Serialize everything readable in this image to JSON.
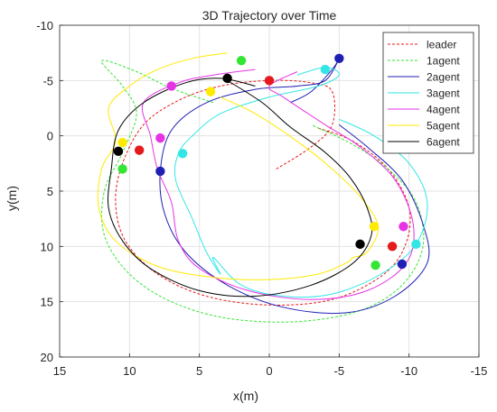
{
  "chart_data": {
    "type": "line",
    "title": "3D Trajectory over Time",
    "xlabel": "x(m)",
    "ylabel": "y(m)",
    "xlim": [
      15,
      -15
    ],
    "ylim": [
      -10,
      20
    ],
    "x_reversed": true,
    "y_reversed": true,
    "xticks": [
      15,
      10,
      5,
      0,
      -5,
      -10,
      -15
    ],
    "yticks": [
      -10,
      -5,
      0,
      5,
      10,
      15,
      20
    ],
    "xtick_labels": [
      "15",
      "10",
      "5",
      "0",
      "-5",
      "-10",
      "-15"
    ],
    "ytick_labels": [
      "-10",
      "-5",
      "0",
      "5",
      "10",
      "15",
      "20"
    ],
    "grid": true,
    "legend_position": "top-right",
    "series": [
      {
        "name": "leader",
        "color": "#e41a1c",
        "style": "dashed",
        "points": [
          [
            -0.5,
            3.0
          ],
          [
            -3.0,
            1.0
          ],
          [
            -4.5,
            -1.0
          ],
          [
            -4.5,
            -4.0
          ],
          [
            -3.0,
            -4.8
          ],
          [
            0,
            -5.0
          ],
          [
            3.5,
            -4.5
          ],
          [
            6.5,
            -3.2
          ],
          [
            9.0,
            -1.0
          ],
          [
            10.5,
            2.5
          ],
          [
            11.0,
            6.0
          ],
          [
            10.3,
            9.5
          ],
          [
            8.0,
            12.5
          ],
          [
            4.5,
            14.5
          ],
          [
            0,
            15.3
          ],
          [
            -4.5,
            14.8
          ],
          [
            -8.0,
            12.7
          ],
          [
            -9.7,
            10.0
          ],
          [
            -10.0,
            6.5
          ],
          [
            -8.5,
            3.0
          ],
          [
            -6.0,
            0.5
          ],
          [
            -3.5,
            -0.7
          ]
        ],
        "markers": [
          [
            0,
            -5.0
          ],
          [
            9.3,
            1.3
          ],
          [
            -8.8,
            10.0
          ]
        ]
      },
      {
        "name": "1agent",
        "color": "#33e633",
        "style": "dashed",
        "points": [
          [
            4.0,
            -3.0
          ],
          [
            7.0,
            -4.3
          ],
          [
            9.5,
            -5.8
          ],
          [
            12.0,
            -6.8
          ],
          [
            10.5,
            -4.5
          ],
          [
            9.5,
            -2.0
          ],
          [
            10.5,
            1.5
          ],
          [
            11.8,
            5.0
          ],
          [
            11.8,
            9.0
          ],
          [
            10.0,
            12.5
          ],
          [
            7.0,
            15.0
          ],
          [
            3.0,
            16.5
          ],
          [
            -2.0,
            16.8
          ],
          [
            -6.5,
            15.8
          ],
          [
            -9.5,
            13.5
          ],
          [
            -11.0,
            10.0
          ],
          [
            -10.5,
            6.0
          ],
          [
            -8.5,
            3.0
          ],
          [
            -6.0,
            0.8
          ],
          [
            -3.0,
            -1.0
          ]
        ],
        "markers": [
          [
            2.0,
            -6.8
          ],
          [
            10.5,
            3.0
          ],
          [
            -7.6,
            11.7
          ]
        ]
      },
      {
        "name": "2agent",
        "color": "#1f1fb4",
        "style": "solid",
        "points": [
          [
            -1.5,
            -3.0
          ],
          [
            -3.0,
            -4.0
          ],
          [
            -4.5,
            -6.0
          ],
          [
            -5.0,
            -7.0
          ],
          [
            -4.0,
            -5.0
          ],
          [
            -2.0,
            -4.5
          ],
          [
            1.0,
            -4.2
          ],
          [
            4.5,
            -3.0
          ],
          [
            7.0,
            -0.5
          ],
          [
            7.8,
            3.2
          ],
          [
            7.5,
            7.0
          ],
          [
            6.0,
            10.5
          ],
          [
            3.0,
            13.5
          ],
          [
            -1.0,
            15.5
          ],
          [
            -5.5,
            16.0
          ],
          [
            -9.0,
            14.5
          ],
          [
            -11.3,
            11.5
          ],
          [
            -11.0,
            8.0
          ],
          [
            -9.5,
            4.0
          ],
          [
            -7.0,
            1.0
          ],
          [
            -5.0,
            -1.0
          ]
        ],
        "markers": [
          [
            -5.0,
            -7.0
          ],
          [
            7.8,
            3.2
          ],
          [
            -9.5,
            11.6
          ]
        ]
      },
      {
        "name": "3agent",
        "color": "#33e6e6",
        "style": "solid",
        "points": [
          [
            -2.0,
            -5.5
          ],
          [
            -4.0,
            -6.2
          ],
          [
            -5.0,
            -5.5
          ],
          [
            -3.5,
            -4.5
          ],
          [
            0,
            -3.5
          ],
          [
            3.5,
            -2.0
          ],
          [
            5.5,
            0.0
          ],
          [
            6.5,
            1.6
          ],
          [
            6.7,
            4.0
          ],
          [
            5.5,
            7.5
          ],
          [
            4.5,
            10.5
          ],
          [
            3.5,
            12.5
          ],
          [
            4.0,
            11.0
          ],
          [
            2.0,
            13.5
          ],
          [
            -1.0,
            14.5
          ],
          [
            -4.5,
            14.3
          ],
          [
            -8.0,
            12.5
          ],
          [
            -10.5,
            9.8
          ],
          [
            -11.3,
            6.0
          ],
          [
            -10.0,
            2.5
          ],
          [
            -7.5,
            0.0
          ],
          [
            -5.0,
            -1.5
          ]
        ],
        "markers": [
          [
            -4.0,
            -6.0
          ],
          [
            6.2,
            1.6
          ],
          [
            -10.5,
            9.8
          ]
        ]
      },
      {
        "name": "4agent",
        "color": "#e633e6",
        "style": "solid",
        "points": [
          [
            1.0,
            -6.0
          ],
          [
            4.0,
            -5.5
          ],
          [
            6.5,
            -4.8
          ],
          [
            9.0,
            -3.0
          ],
          [
            8.5,
            0.0
          ],
          [
            8.0,
            3.0
          ],
          [
            7.0,
            6.0
          ],
          [
            6.5,
            9.5
          ],
          [
            5.0,
            12.0
          ],
          [
            1.5,
            14.0
          ],
          [
            -3.0,
            14.8
          ],
          [
            -7.0,
            14.0
          ],
          [
            -9.8,
            11.5
          ],
          [
            -10.3,
            8.0
          ],
          [
            -9.0,
            4.0
          ],
          [
            -6.5,
            1.0
          ],
          [
            -4.0,
            -1.0
          ],
          [
            -1.0,
            -3.5
          ],
          [
            0,
            -4.5
          ],
          [
            -2.0,
            -5.8
          ]
        ],
        "markers": [
          [
            7.0,
            -4.5
          ],
          [
            7.8,
            0.2
          ],
          [
            -9.6,
            8.2
          ]
        ]
      },
      {
        "name": "5agent",
        "color": "#ffea00",
        "style": "solid",
        "points": [
          [
            3.0,
            -7.5
          ],
          [
            5.5,
            -7.0
          ],
          [
            8.0,
            -6.0
          ],
          [
            10.0,
            -4.5
          ],
          [
            11.5,
            -2.5
          ],
          [
            11.0,
            0.5
          ],
          [
            12.0,
            3.0
          ],
          [
            12.2,
            6.5
          ],
          [
            11.0,
            9.5
          ],
          [
            8.0,
            11.8
          ],
          [
            4.0,
            12.8
          ],
          [
            0,
            13.0
          ],
          [
            -3.5,
            12.5
          ],
          [
            -5.5,
            11.5
          ],
          [
            -6.0,
            11.0
          ],
          [
            -7.0,
            10.5
          ],
          [
            -7.8,
            8.2
          ],
          [
            -6.5,
            5.5
          ],
          [
            -4.5,
            3.0
          ],
          [
            -2.0,
            0.5
          ],
          [
            1.0,
            -2.0
          ],
          [
            3.5,
            -3.5
          ]
        ],
        "markers": [
          [
            4.2,
            -4.0
          ],
          [
            10.5,
            0.6
          ],
          [
            -7.5,
            8.2
          ]
        ]
      },
      {
        "name": "6agent",
        "color": "#000000",
        "style": "solid",
        "points": [
          [
            1.0,
            -4.5
          ],
          [
            3.5,
            -5.2
          ],
          [
            6.0,
            -4.8
          ],
          [
            9.0,
            -3.0
          ],
          [
            10.8,
            -0.5
          ],
          [
            11.3,
            3.0
          ],
          [
            11.5,
            6.5
          ],
          [
            10.5,
            9.5
          ],
          [
            8.5,
            12.0
          ],
          [
            5.0,
            14.0
          ],
          [
            1.0,
            14.5
          ],
          [
            -3.0,
            13.5
          ],
          [
            -6.0,
            11.5
          ],
          [
            -7.3,
            9.0
          ],
          [
            -7.0,
            6.5
          ],
          [
            -5.8,
            3.8
          ],
          [
            -4.0,
            1.5
          ],
          [
            -1.5,
            -0.8
          ],
          [
            0.5,
            -3.0
          ],
          [
            3.0,
            -5.0
          ]
        ],
        "markers": [
          [
            3.0,
            -5.2
          ],
          [
            10.8,
            1.4
          ],
          [
            -6.5,
            9.8
          ]
        ]
      }
    ]
  }
}
